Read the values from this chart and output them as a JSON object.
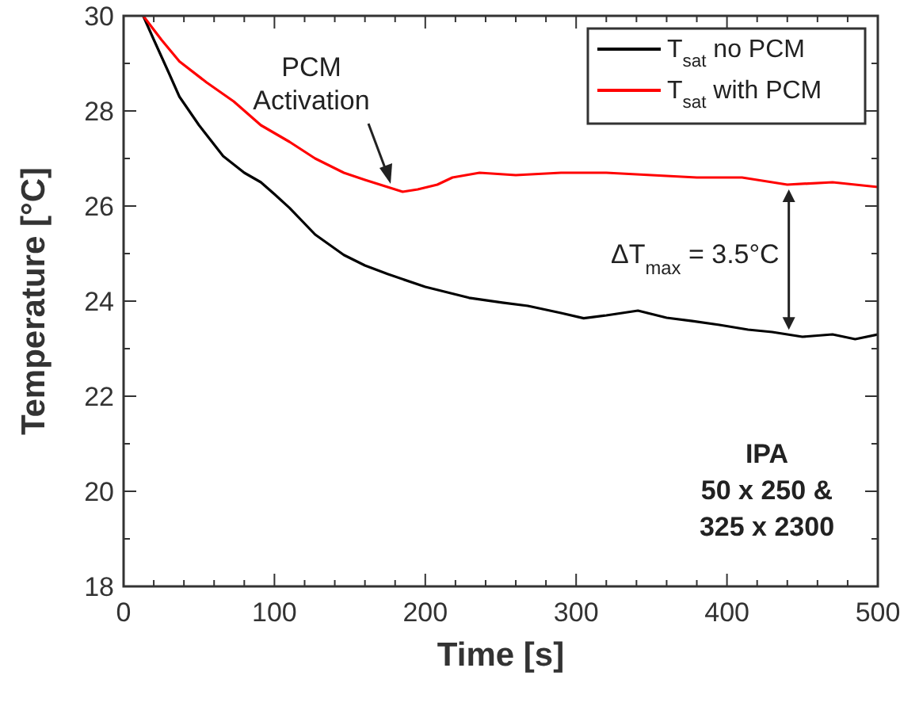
{
  "chart_data": {
    "type": "line",
    "xlabel": "Time [s]",
    "ylabel": "Temperature [°C]",
    "xlim": [
      0,
      500
    ],
    "ylim": [
      18,
      30
    ],
    "xticks": [
      0,
      {
        "value": 20,
        "label": null
      },
      {
        "value": 40,
        "label": null
      },
      {
        "value": 60,
        "label": null
      },
      {
        "value": 80,
        "label": null
      },
      100,
      {
        "value": 120,
        "label": null
      },
      {
        "value": 140,
        "label": null
      },
      {
        "value": 160,
        "label": null
      },
      {
        "value": 180,
        "label": null
      },
      200,
      {
        "value": 220,
        "label": null
      },
      {
        "value": 240,
        "label": null
      },
      {
        "value": 260,
        "label": null
      },
      {
        "value": 280,
        "label": null
      },
      300,
      {
        "value": 320,
        "label": null
      },
      {
        "value": 340,
        "label": null
      },
      {
        "value": 360,
        "label": null
      },
      {
        "value": 380,
        "label": null
      },
      400,
      {
        "value": 420,
        "label": null
      },
      {
        "value": 440,
        "label": null
      },
      {
        "value": 460,
        "label": null
      },
      {
        "value": 480,
        "label": null
      },
      500
    ],
    "yticks": [
      18,
      {
        "value": 19,
        "label": null
      },
      20,
      {
        "value": 21,
        "label": null
      },
      22,
      {
        "value": 23,
        "label": null
      },
      24,
      {
        "value": 25,
        "label": null
      },
      26,
      {
        "value": 27,
        "label": null
      },
      28,
      {
        "value": 29,
        "label": null
      },
      30
    ],
    "legend": "top right",
    "grid": false,
    "marker": "none",
    "line_style": "solid",
    "series": [
      {
        "name": "T$_{sat}$ no PCM",
        "color": "#000000",
        "x": [
          13,
          20,
          30,
          37,
          50,
          66,
          80,
          91,
          100,
          110,
          127,
          146,
          160,
          175,
          200,
          229,
          251,
          268,
          290,
          305,
          320,
          341,
          360,
          377,
          395,
          414,
          430,
          450,
          470,
          485,
          500
        ],
        "values": [
          30,
          29.5,
          28.8,
          28.3,
          27.7,
          27.05,
          26.7,
          26.5,
          26.25,
          25.96,
          25.4,
          24.97,
          24.75,
          24.57,
          24.3,
          24.07,
          23.97,
          23.9,
          23.75,
          23.64,
          23.7,
          23.8,
          23.65,
          23.58,
          23.5,
          23.4,
          23.35,
          23.25,
          23.3,
          23.2,
          23.3
        ]
      },
      {
        "name": "T$_{sat}$ with PCM",
        "color": "#ff0000",
        "x": [
          13,
          25,
          37,
          55,
          73,
          91,
          110,
          127,
          146,
          160,
          175,
          185,
          195,
          208,
          218,
          236,
          260,
          290,
          320,
          350,
          380,
          410,
          440,
          470,
          500
        ],
        "values": [
          30,
          29.5,
          29.04,
          28.6,
          28.2,
          27.7,
          27.35,
          27.0,
          26.7,
          26.55,
          26.4,
          26.3,
          26.35,
          26.45,
          26.6,
          26.7,
          26.65,
          26.7,
          26.7,
          26.65,
          26.6,
          26.6,
          26.45,
          26.5,
          26.4
        ]
      }
    ],
    "annotations": [
      {
        "text": "PCM\nActivation",
        "x": 177,
        "y": 26.4
      },
      "ΔT$_{max}$ = 3.5°C",
      "IPA\n50 x 250 &\n325 x 2300"
    ]
  }
}
